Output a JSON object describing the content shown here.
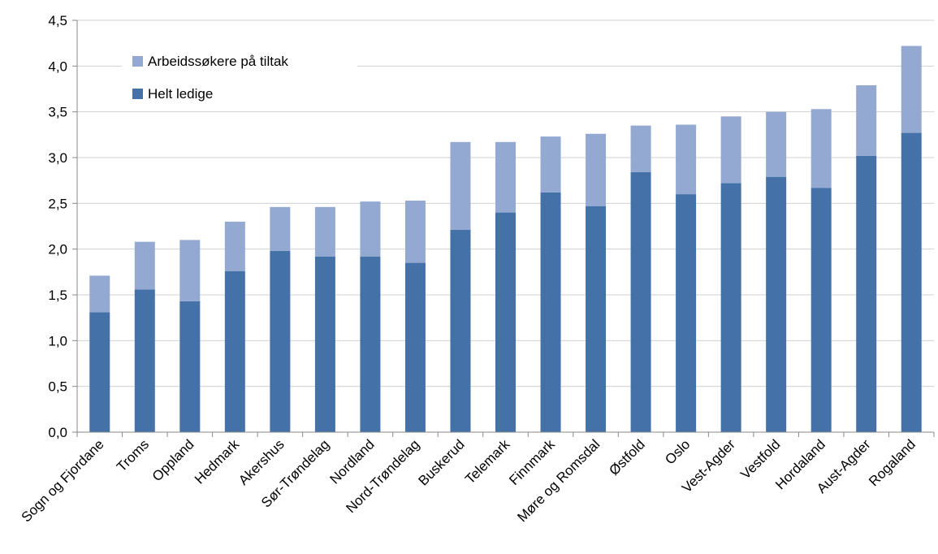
{
  "chart_data": {
    "type": "bar",
    "stacked": true,
    "categories": [
      "Sogn og Fjordane",
      "Troms",
      "Oppland",
      "Hedmark",
      "Akershus",
      "Sør-Trøndelag",
      "Nordland",
      "Nord-Trøndelag",
      "Buskerud",
      "Telemark",
      "Finnmark",
      "Møre og Romsdal",
      "Østfold",
      "Oslo",
      "Vest-Agder",
      "Vestfold",
      "Hordaland",
      "Aust-Agder",
      "Rogaland"
    ],
    "series": [
      {
        "name": "Helt ledige",
        "color": "#4472a8",
        "values": [
          1.31,
          1.56,
          1.43,
          1.76,
          1.98,
          1.92,
          1.92,
          1.85,
          2.21,
          2.4,
          2.62,
          2.47,
          2.84,
          2.6,
          2.72,
          2.79,
          2.67,
          3.02,
          3.27
        ]
      },
      {
        "name": "Arbeidssøkere på tiltak",
        "color": "#93a9d1",
        "values": [
          0.4,
          0.52,
          0.67,
          0.54,
          0.48,
          0.54,
          0.6,
          0.68,
          0.96,
          0.77,
          0.61,
          0.79,
          0.51,
          0.76,
          0.73,
          0.71,
          0.86,
          0.77,
          0.95
        ]
      }
    ],
    "yticks": [
      "0,0",
      "0,5",
      "1,0",
      "1,5",
      "2,0",
      "2,5",
      "3,0",
      "3,5",
      "4,0",
      "4,5"
    ],
    "ylim": [
      0,
      4.5
    ],
    "grid": true,
    "legend": {
      "placement": "top-left",
      "items": [
        {
          "label": "Arbeidssøkere på tiltak",
          "color": "#93a9d1"
        },
        {
          "label": "Helt ledige",
          "color": "#4472a8"
        }
      ]
    },
    "title": "",
    "xlabel": "",
    "ylabel": ""
  }
}
